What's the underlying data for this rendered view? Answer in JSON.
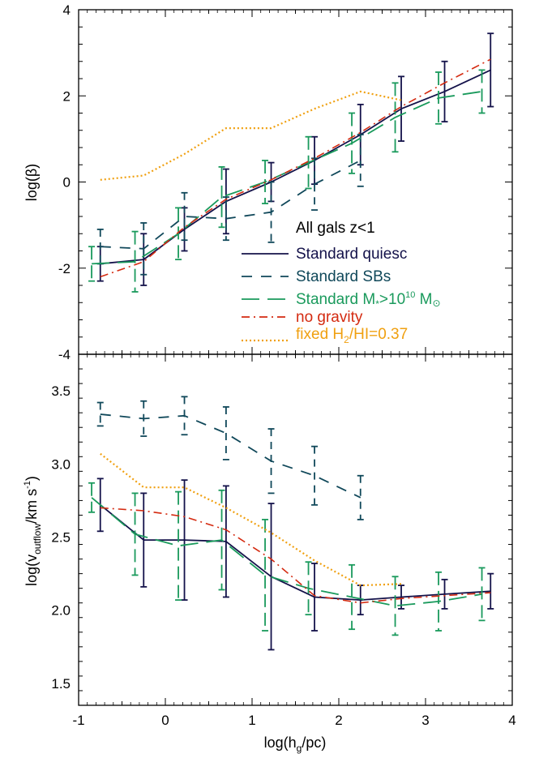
{
  "colors": {
    "quiesc": "#14124a",
    "sbs": "#10485a",
    "massive": "#1a9a5c",
    "nograv": "#d42a10",
    "fixed": "#f0a010",
    "axis": "#000000",
    "title": "#000000"
  },
  "chart_data": [
    {
      "panel": "top",
      "type": "line",
      "xlabel_main": "log(h",
      "xlabel_sub": "g",
      "xlabel_end": "/pc)",
      "ylabel": "log(β)",
      "xlim": [
        -1,
        4
      ],
      "ylim": [
        -4,
        4
      ],
      "xticks": [
        -1,
        0,
        1,
        2,
        3,
        4
      ],
      "yticks": [
        -4,
        -2,
        0,
        2,
        4
      ],
      "legend_placement": "bottom-right",
      "legend": {
        "title": "All gals z<1",
        "quiesc": "Standard quiesc",
        "sbs": "Standard SBs",
        "massive_pre": "Standard M",
        "massive_star": "*",
        "massive_mid": ">10",
        "massive_exp": "10",
        "massive_post": " M",
        "massive_sun": "⊙",
        "nograv": "no gravity",
        "fixed_pre": "fixed H",
        "fixed_sub": "2",
        "fixed_post": "/HI=0.37"
      },
      "series": [
        {
          "key": "quiesc",
          "x": [
            -0.75,
            -0.25,
            0.22,
            0.7,
            1.22,
            1.72,
            2.25,
            2.72,
            3.22,
            3.75
          ],
          "y": [
            -1.9,
            -1.8,
            -1.1,
            -0.45,
            0.0,
            0.5,
            1.1,
            1.7,
            2.1,
            2.6
          ],
          "err": [
            0.4,
            0.6,
            0.5,
            0.75,
            0.45,
            0.55,
            0.7,
            0.75,
            0.7,
            0.85
          ]
        },
        {
          "key": "sbs",
          "x": [
            -0.75,
            -0.25,
            0.22,
            0.7,
            1.22,
            1.72,
            2.25
          ],
          "y": [
            -1.5,
            -1.55,
            -0.8,
            -0.85,
            -0.7,
            -0.05,
            0.5
          ],
          "err": [
            0.4,
            0.6,
            0.55,
            0.5,
            0.7,
            0.6,
            0.6
          ]
        },
        {
          "key": "massive",
          "x": [
            -0.85,
            -0.35,
            0.15,
            0.65,
            1.15,
            1.65,
            2.15,
            2.65,
            3.15,
            3.65
          ],
          "y": [
            -1.9,
            -1.85,
            -1.2,
            -0.35,
            0.0,
            0.45,
            0.9,
            1.5,
            1.95,
            2.1
          ],
          "err": [
            0.4,
            0.7,
            0.6,
            0.7,
            0.5,
            0.6,
            0.7,
            0.8,
            0.6,
            0.5
          ]
        },
        {
          "key": "nograv",
          "x": [
            -0.75,
            -0.25,
            0.22,
            0.7,
            1.22,
            1.72,
            2.25,
            2.72,
            3.22,
            3.75
          ],
          "y": [
            -2.2,
            -1.85,
            -1.05,
            -0.4,
            0.05,
            0.55,
            1.15,
            1.75,
            2.3,
            2.85
          ]
        },
        {
          "key": "fixed",
          "x": [
            -0.75,
            -0.25,
            0.22,
            0.7,
            1.22,
            1.72,
            2.25,
            2.72
          ],
          "y": [
            0.05,
            0.15,
            0.65,
            1.25,
            1.25,
            1.7,
            2.1,
            1.9
          ]
        }
      ]
    },
    {
      "panel": "bottom",
      "type": "line",
      "xlabel_main": "log(h",
      "xlabel_sub": "g",
      "xlabel_end": "/pc)",
      "ylabel_pre": "log(v",
      "ylabel_sub": "outflow",
      "ylabel_mid": "/km s",
      "ylabel_sup": "-1",
      "ylabel_post": ")",
      "xlim": [
        -1,
        4
      ],
      "ylim": [
        1.35,
        3.75
      ],
      "xticks": [
        -1,
        0,
        1,
        2,
        3,
        4
      ],
      "yticks": [
        1.5,
        2.0,
        2.5,
        3.0,
        3.5
      ],
      "series": [
        {
          "key": "quiesc",
          "x": [
            -0.75,
            -0.25,
            0.22,
            0.7,
            1.22,
            1.72,
            2.25,
            2.72,
            3.22,
            3.75
          ],
          "y": [
            2.72,
            2.48,
            2.48,
            2.47,
            2.23,
            2.09,
            2.07,
            2.09,
            2.11,
            2.13
          ],
          "err": [
            0.18,
            0.32,
            0.41,
            0.38,
            0.5,
            0.23,
            0.1,
            0.08,
            0.1,
            0.12
          ]
        },
        {
          "key": "sbs",
          "x": [
            -0.75,
            -0.25,
            0.22,
            0.7,
            1.22,
            1.72,
            2.25
          ],
          "y": [
            3.34,
            3.31,
            3.33,
            3.21,
            3.02,
            2.92,
            2.77
          ],
          "err": [
            0.08,
            0.12,
            0.13,
            0.18,
            0.22,
            0.2,
            0.15
          ]
        },
        {
          "key": "massive",
          "x": [
            -0.85,
            -0.35,
            0.15,
            0.65,
            1.15,
            1.65,
            2.15,
            2.65,
            3.15,
            3.65
          ],
          "y": [
            2.77,
            2.52,
            2.44,
            2.48,
            2.24,
            2.15,
            2.09,
            2.03,
            2.06,
            2.11
          ],
          "err": [
            0.1,
            0.28,
            0.37,
            0.34,
            0.38,
            0.18,
            0.22,
            0.2,
            0.2,
            0.18
          ]
        },
        {
          "key": "nograv",
          "x": [
            -0.75,
            -0.25,
            0.22,
            0.7,
            1.22,
            1.72,
            2.25,
            2.72,
            3.22,
            3.75
          ],
          "y": [
            2.7,
            2.68,
            2.64,
            2.55,
            2.35,
            2.1,
            2.05,
            2.08,
            2.1,
            2.12
          ]
        },
        {
          "key": "fixed",
          "x": [
            -0.75,
            -0.25,
            0.22,
            0.7,
            1.22,
            1.72,
            2.25,
            2.72
          ],
          "y": [
            3.07,
            2.84,
            2.84,
            2.7,
            2.53,
            2.34,
            2.17,
            2.18
          ]
        }
      ]
    }
  ]
}
